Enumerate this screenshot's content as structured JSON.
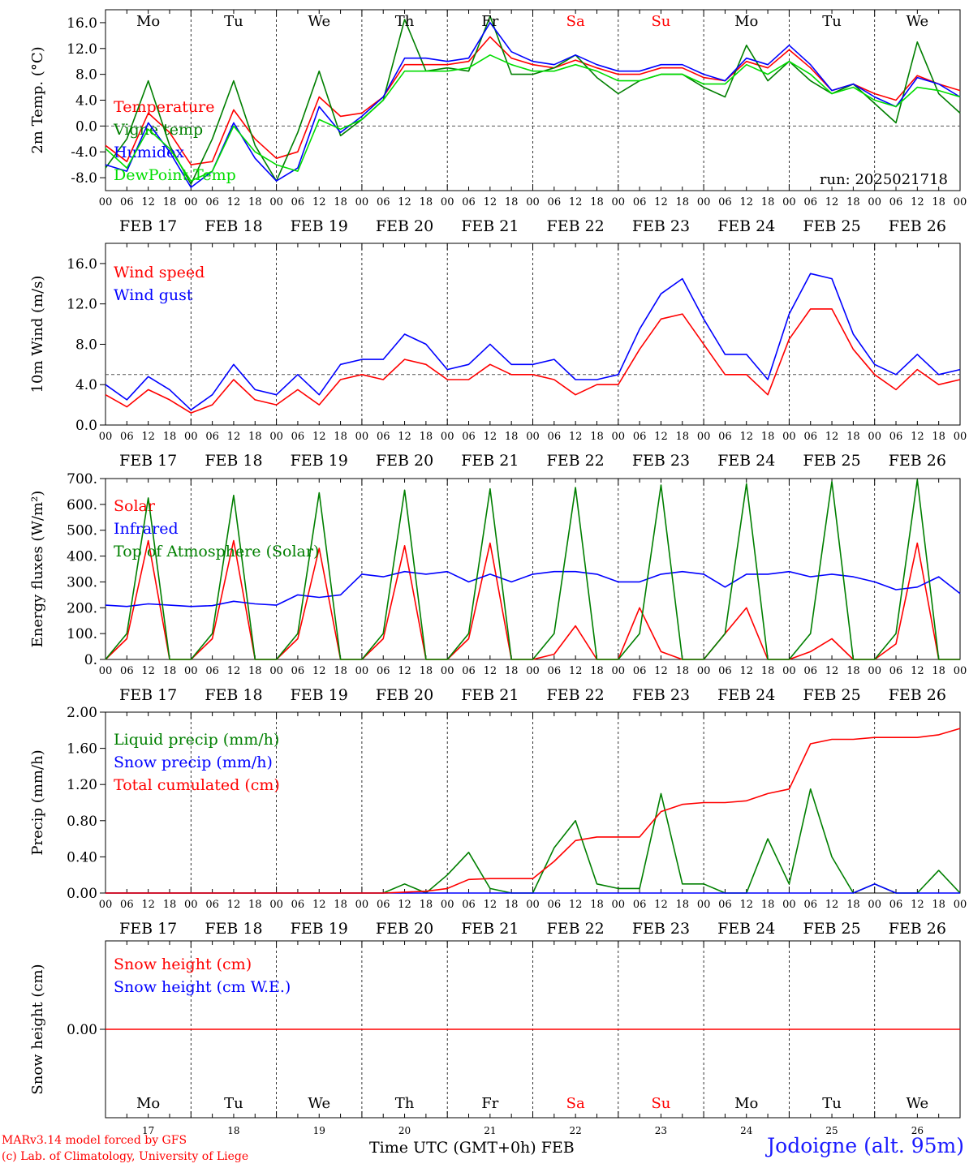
{
  "chart_data": [
    {
      "type": "line",
      "ylabel": "2m Temp. (°C)",
      "ylim": [
        -10,
        18
      ],
      "yticks": [
        "-8.0",
        "-4.0",
        "0.0",
        "4.0",
        "8.0",
        "12.0",
        "16.0"
      ],
      "reference_line": 0,
      "annotation": "run: 2025021718",
      "x_hours": [
        0,
        6,
        12,
        18,
        24,
        30,
        36,
        42,
        48,
        54,
        60,
        66,
        72,
        78,
        84,
        90,
        96,
        102,
        108,
        114,
        120,
        126,
        132,
        138,
        144,
        150,
        156,
        162,
        168,
        174,
        180,
        186,
        192,
        198,
        204,
        210,
        216,
        222,
        228,
        234,
        240
      ],
      "series": [
        {
          "name": "Temperature",
          "color": "#ff0000",
          "values": [
            -3.0,
            -5.5,
            2.0,
            -1.0,
            -6.0,
            -5.5,
            2.5,
            -2.0,
            -5.0,
            -4.0,
            4.5,
            1.5,
            2.0,
            4.5,
            9.5,
            9.5,
            9.5,
            10.0,
            13.8,
            10.5,
            9.5,
            9.0,
            10.2,
            9.0,
            8.0,
            8.0,
            9.0,
            9.0,
            7.5,
            7.0,
            10.0,
            9.0,
            11.8,
            9.0,
            5.5,
            6.5,
            5.0,
            4.0,
            7.8,
            6.5,
            5.5
          ]
        },
        {
          "name": "Vigne temp",
          "color": "#007f00",
          "values": [
            -6.5,
            -2.0,
            7.0,
            -3.0,
            -9.0,
            -2.0,
            7.0,
            -3.0,
            -8.5,
            -1.0,
            8.5,
            -1.5,
            1.0,
            4.0,
            16.5,
            8.5,
            9.0,
            8.5,
            17.0,
            8.0,
            8.0,
            9.0,
            11.0,
            7.5,
            5.0,
            7.0,
            8.0,
            8.0,
            6.0,
            4.5,
            12.5,
            7.0,
            10.0,
            7.0,
            5.0,
            6.5,
            3.5,
            0.5,
            13.0,
            5.0,
            2.0
          ]
        },
        {
          "name": "Humidex",
          "color": "#0000ff",
          "values": [
            -6.0,
            -7.0,
            0.5,
            -4.0,
            -9.5,
            -7.0,
            0.5,
            -5.0,
            -8.5,
            -6.5,
            3.0,
            -1.0,
            1.5,
            4.5,
            10.5,
            10.5,
            10.0,
            10.5,
            16.0,
            11.5,
            10.0,
            9.5,
            11.0,
            9.5,
            8.5,
            8.5,
            9.5,
            9.5,
            8.0,
            7.0,
            10.5,
            9.5,
            12.5,
            9.5,
            5.5,
            6.5,
            4.5,
            3.0,
            7.5,
            6.5,
            4.5
          ]
        },
        {
          "name": "DewPoint Temp",
          "color": "#00dd00",
          "values": [
            -3.5,
            -6.5,
            -0.5,
            -3.5,
            -8.5,
            -7.0,
            0.0,
            -4.0,
            -6.0,
            -7.0,
            1.0,
            -0.5,
            1.0,
            4.0,
            8.5,
            8.5,
            8.5,
            9.0,
            11.0,
            9.5,
            8.5,
            8.5,
            9.5,
            8.5,
            7.0,
            7.0,
            8.0,
            8.0,
            6.5,
            6.5,
            9.5,
            8.0,
            10.0,
            8.0,
            5.0,
            6.0,
            4.0,
            3.0,
            6.0,
            5.5,
            4.5
          ]
        }
      ]
    },
    {
      "type": "line",
      "ylabel": "10m Wind (m/s)",
      "ylim": [
        0,
        18
      ],
      "yticks": [
        "0.0",
        "4.0",
        "8.0",
        "12.0",
        "16.0"
      ],
      "reference_line": 5,
      "x_hours": [
        0,
        6,
        12,
        18,
        24,
        30,
        36,
        42,
        48,
        54,
        60,
        66,
        72,
        78,
        84,
        90,
        96,
        102,
        108,
        114,
        120,
        126,
        132,
        138,
        144,
        150,
        156,
        162,
        168,
        174,
        180,
        186,
        192,
        198,
        204,
        210,
        216,
        222,
        228,
        234,
        240
      ],
      "series": [
        {
          "name": "Wind speed",
          "color": "#ff0000",
          "values": [
            3.0,
            1.8,
            3.5,
            2.5,
            1.2,
            2.0,
            4.5,
            2.5,
            2.0,
            3.5,
            2.0,
            4.5,
            5.0,
            4.5,
            6.5,
            6.0,
            4.5,
            4.5,
            6.0,
            5.0,
            5.0,
            4.5,
            3.0,
            4.0,
            4.0,
            7.5,
            10.5,
            11.0,
            8.0,
            5.0,
            5.0,
            3.0,
            8.5,
            11.5,
            11.5,
            7.5,
            5.0,
            3.5,
            5.5,
            4.0,
            4.5
          ]
        },
        {
          "name": "Wind gust",
          "color": "#0000ff",
          "values": [
            4.0,
            2.5,
            4.8,
            3.5,
            1.5,
            3.0,
            6.0,
            3.5,
            3.0,
            5.0,
            3.0,
            6.0,
            6.5,
            6.5,
            9.0,
            8.0,
            5.5,
            6.0,
            8.0,
            6.0,
            6.0,
            6.5,
            4.5,
            4.5,
            5.0,
            9.5,
            13.0,
            14.5,
            10.5,
            7.0,
            7.0,
            4.5,
            11.0,
            15.0,
            14.5,
            9.0,
            6.0,
            5.0,
            7.0,
            5.0,
            5.5
          ]
        }
      ]
    },
    {
      "type": "line",
      "ylabel": "Energy fluxes (W/m²)",
      "ylim": [
        0,
        700
      ],
      "yticks": [
        "0.",
        "100.",
        "200.",
        "300.",
        "400.",
        "500.",
        "600.",
        "700."
      ],
      "x_hours": [
        0,
        6,
        12,
        18,
        24,
        30,
        36,
        42,
        48,
        54,
        60,
        66,
        72,
        78,
        84,
        90,
        96,
        102,
        108,
        114,
        120,
        126,
        132,
        138,
        144,
        150,
        156,
        162,
        168,
        174,
        180,
        186,
        192,
        198,
        204,
        210,
        216,
        222,
        228,
        234,
        240
      ],
      "series": [
        {
          "name": "Solar",
          "color": "#ff0000",
          "values": [
            0,
            80,
            460,
            0,
            0,
            80,
            460,
            0,
            0,
            80,
            430,
            0,
            0,
            80,
            440,
            0,
            0,
            80,
            450,
            0,
            0,
            20,
            130,
            0,
            0,
            200,
            30,
            0,
            0,
            100,
            200,
            0,
            0,
            30,
            80,
            0,
            0,
            60,
            450,
            0,
            0
          ]
        },
        {
          "name": "Infrared",
          "color": "#0000ff",
          "values": [
            210,
            205,
            215,
            210,
            205,
            208,
            225,
            215,
            210,
            250,
            240,
            250,
            330,
            320,
            340,
            330,
            340,
            300,
            330,
            300,
            330,
            340,
            340,
            330,
            300,
            300,
            330,
            340,
            330,
            280,
            330,
            330,
            340,
            320,
            330,
            320,
            300,
            270,
            280,
            320,
            255
          ]
        },
        {
          "name": "Top of Atmosphere (Solar)",
          "color": "#007f00",
          "values": [
            0,
            100,
            625,
            0,
            0,
            100,
            635,
            0,
            0,
            100,
            645,
            0,
            0,
            100,
            655,
            0,
            0,
            100,
            660,
            0,
            0,
            100,
            665,
            0,
            0,
            100,
            675,
            0,
            0,
            100,
            680,
            0,
            0,
            100,
            688,
            0,
            0,
            100,
            695,
            0,
            0
          ]
        }
      ]
    },
    {
      "type": "line",
      "ylabel": "Precip (mm/h)",
      "ylim": [
        0,
        2
      ],
      "yticks": [
        "0.00",
        "0.40",
        "0.80",
        "1.20",
        "1.60",
        "2.00"
      ],
      "x_hours": [
        0,
        6,
        12,
        18,
        24,
        30,
        36,
        42,
        48,
        54,
        60,
        66,
        72,
        78,
        84,
        90,
        96,
        102,
        108,
        114,
        120,
        126,
        132,
        138,
        144,
        150,
        156,
        162,
        168,
        174,
        180,
        186,
        192,
        198,
        204,
        210,
        216,
        222,
        228,
        234,
        240
      ],
      "series": [
        {
          "name": "Liquid precip (mm/h)",
          "color": "#007f00",
          "values": [
            0,
            0,
            0,
            0,
            0,
            0,
            0,
            0,
            0,
            0,
            0,
            0,
            0,
            0,
            0.1,
            0,
            0.2,
            0.45,
            0.05,
            0,
            0,
            0.5,
            0.8,
            0.1,
            0.05,
            0.05,
            1.1,
            0.1,
            0.1,
            0,
            0,
            0.6,
            0.1,
            1.15,
            0.4,
            0,
            0.1,
            0,
            0,
            0.25,
            0
          ]
        },
        {
          "name": "Snow precip (mm/h)",
          "color": "#0000ff",
          "values": [
            0,
            0,
            0,
            0,
            0,
            0,
            0,
            0,
            0,
            0,
            0,
            0,
            0,
            0,
            0,
            0,
            0,
            0,
            0,
            0,
            0,
            0,
            0,
            0,
            0,
            0,
            0,
            0,
            0,
            0,
            0,
            0,
            0,
            0,
            0,
            0,
            0.1,
            0,
            0,
            0,
            0
          ]
        },
        {
          "name": "Total cumulated (cm)",
          "color": "#ff0000",
          "values": [
            0,
            0,
            0,
            0,
            0,
            0,
            0,
            0,
            0,
            0,
            0,
            0,
            0,
            0,
            0.01,
            0.02,
            0.05,
            0.15,
            0.16,
            0.16,
            0.16,
            0.35,
            0.58,
            0.62,
            0.62,
            0.62,
            0.9,
            0.98,
            1.0,
            1.0,
            1.02,
            1.1,
            1.15,
            1.65,
            1.7,
            1.7,
            1.72,
            1.72,
            1.72,
            1.75,
            1.82
          ]
        }
      ]
    },
    {
      "type": "line",
      "ylabel": "Snow height (cm)",
      "ylim": [
        -1,
        1
      ],
      "yticks": [
        "0.00"
      ],
      "x_hours": [
        0,
        240
      ],
      "series": [
        {
          "name": "Snow height (cm)",
          "color": "#ff0000",
          "values": [
            0,
            0
          ]
        },
        {
          "name": "Snow height (cm W.E.)",
          "color": "#0000ff",
          "values": []
        }
      ]
    }
  ],
  "x_axis": {
    "hour_labels": [
      "00",
      "06",
      "12",
      "18"
    ],
    "final_hour_label": "00",
    "date_labels": [
      "FEB 17",
      "FEB 18",
      "FEB 19",
      "FEB 20",
      "FEB 21",
      "FEB 22",
      "FEB 23",
      "FEB 24",
      "FEB 25",
      "FEB 26"
    ],
    "weekdays": [
      "Mo",
      "Tu",
      "We",
      "Th",
      "Fr",
      "Sa",
      "Su",
      "Mo",
      "Tu",
      "We"
    ],
    "weekend_color": "#ff0000",
    "day_numbers": [
      "17",
      "18",
      "19",
      "20",
      "21",
      "22",
      "23",
      "24",
      "25",
      "26"
    ],
    "title": "Time UTC (GMT+0h)",
    "month": "FEB"
  },
  "footer": {
    "credit_line1": "MARv3.14 model forced by GFS",
    "credit_line2": "(c) Lab. of Climatology, University of Liege",
    "station": "Jodoigne (alt. 95m)"
  }
}
